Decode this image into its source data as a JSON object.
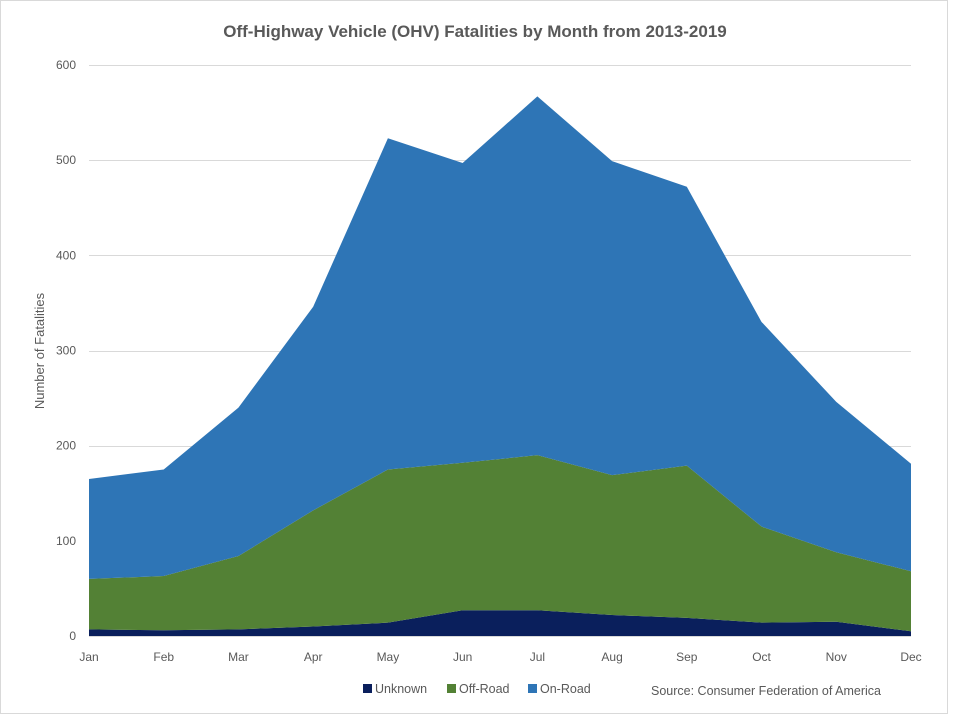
{
  "chart_data": {
    "type": "area",
    "stacked": true,
    "title": "Off-Highway Vehicle (OHV) Fatalities by Month from 2013-2019",
    "xlabel": "",
    "ylabel": "Number of Fatalities",
    "categories": [
      "Jan",
      "Feb",
      "Mar",
      "Apr",
      "May",
      "Jun",
      "Jul",
      "Aug",
      "Sep",
      "Oct",
      "Nov",
      "Dec"
    ],
    "ylim": [
      0,
      600
    ],
    "yticks": [
      0,
      100,
      200,
      300,
      400,
      500,
      600
    ],
    "grid": true,
    "legend_position": "bottom",
    "series": [
      {
        "name": "Unknown",
        "color": "#0A1F5C",
        "values": [
          7,
          6,
          7,
          10,
          14,
          27,
          27,
          22,
          19,
          14,
          15,
          5
        ]
      },
      {
        "name": "Off-Road",
        "color": "#538135",
        "values": [
          53,
          57,
          77,
          122,
          161,
          155,
          163,
          147,
          160,
          101,
          73,
          63
        ]
      },
      {
        "name": "On-Road",
        "color": "#2E75B6",
        "values": [
          105,
          112,
          156,
          214,
          348,
          315,
          377,
          330,
          293,
          215,
          158,
          113
        ]
      }
    ],
    "source": "Source: Consumer Federation of America"
  }
}
